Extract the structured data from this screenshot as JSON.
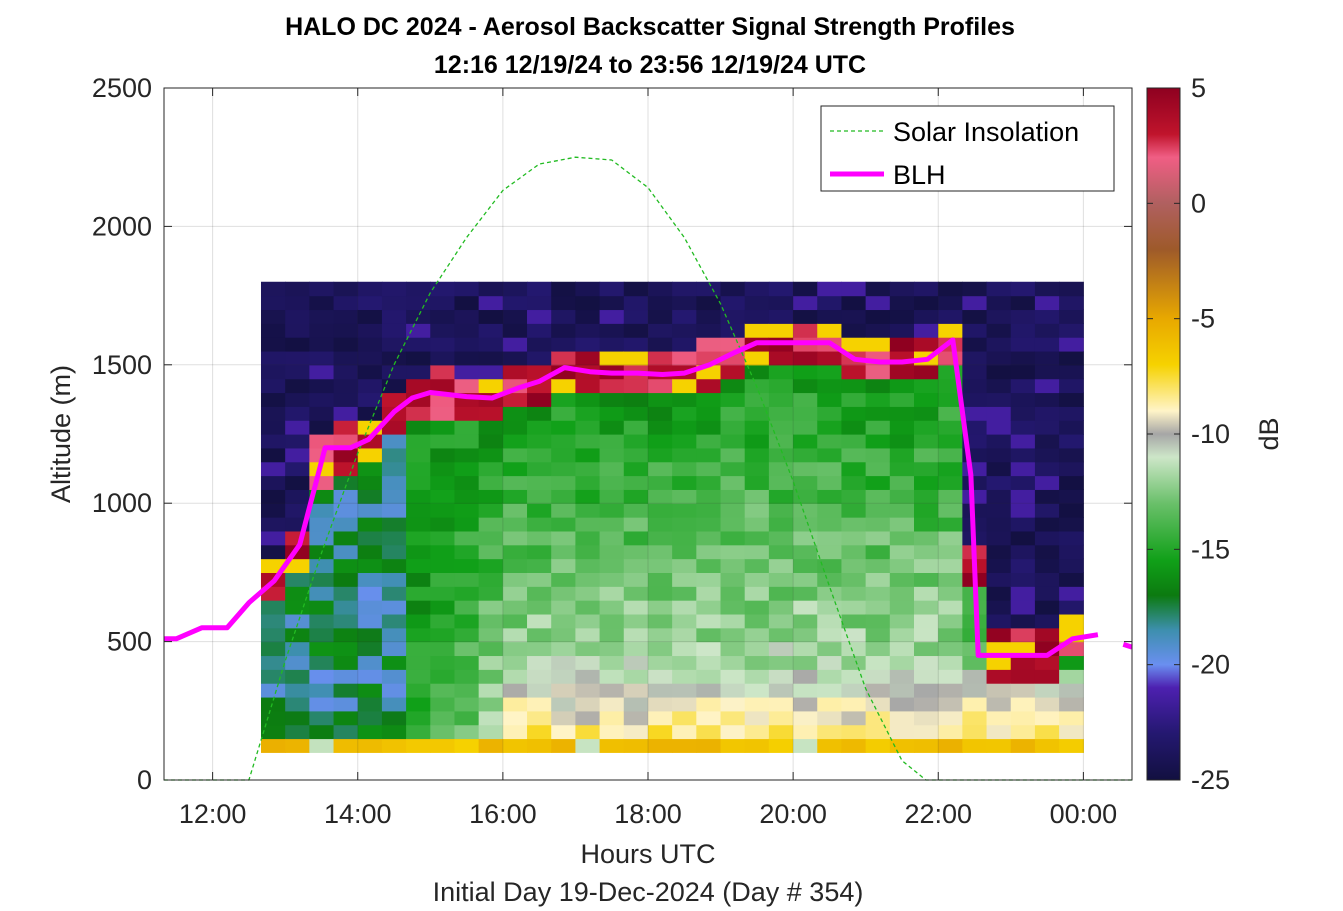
{
  "chart_data": {
    "type": "heatmap",
    "title": "HALO DC 2024 - Aerosol Backscatter Signal Strength Profiles",
    "subtitle": "12:16 12/19/24 to 23:56 12/19/24  UTC",
    "xlabel": "Hours UTC",
    "footer": "Initial Day 19-Dec-2024 (Day # 354)",
    "ylabel": "Altitude (m)",
    "colorbar_label": "dB",
    "xlim": [
      11.33,
      24.67
    ],
    "ylim": [
      0,
      2500
    ],
    "x_ticks": [
      12,
      14,
      16,
      18,
      20,
      22,
      24
    ],
    "x_tick_labels": [
      "12:00",
      "14:00",
      "16:00",
      "18:00",
      "20:00",
      "22:00",
      "00:00"
    ],
    "y_ticks": [
      0,
      500,
      1000,
      1500,
      2000,
      2500
    ],
    "y_tick_labels": [
      "0",
      "500",
      "1000",
      "1500",
      "2000",
      "2500"
    ],
    "clim": [
      -25,
      5
    ],
    "c_ticks": [
      5,
      0,
      -5,
      -10,
      -15,
      -20,
      -25
    ],
    "c_tick_labels": [
      "5",
      "0",
      "-5",
      "-10",
      "-15",
      "-20",
      "-25"
    ],
    "grid": true,
    "legend_position": "top-right",
    "colormap": [
      [
        -25,
        "#121040"
      ],
      [
        -23,
        "#241870"
      ],
      [
        -21,
        "#4d20b0"
      ],
      [
        -20,
        "#6a8ff0"
      ],
      [
        -18.5,
        "#3d8fae"
      ],
      [
        -17,
        "#0c7a10"
      ],
      [
        -15.5,
        "#10a018"
      ],
      [
        -13,
        "#6ac06a"
      ],
      [
        -11,
        "#cde6c8"
      ],
      [
        -10,
        "#a6a6a6"
      ],
      [
        -9,
        "#fff4c8"
      ],
      [
        -7,
        "#f6d200"
      ],
      [
        -5,
        "#e8a800"
      ],
      [
        -2,
        "#9e5a2a"
      ],
      [
        0,
        "#b06060"
      ],
      [
        2,
        "#f05e84"
      ],
      [
        3,
        "#c0142c"
      ],
      [
        5,
        "#8e0020"
      ]
    ],
    "heatmap": {
      "x_start": 12.0,
      "x_step": 0.3333,
      "y_start": 100,
      "y_step": 50,
      "rows": 34,
      "cols": 36,
      "missing_cols": [
        0,
        1
      ]
    },
    "series": [
      {
        "name": "Solar Insolation",
        "style": "dashed",
        "color": "#22bb22",
        "x": [
          11.33,
          12.0,
          12.5,
          13.0,
          13.5,
          14.0,
          14.5,
          15.0,
          15.5,
          16.0,
          16.5,
          17.0,
          17.5,
          18.0,
          18.5,
          19.0,
          19.5,
          20.0,
          20.5,
          21.0,
          21.5,
          21.83,
          22.2,
          24.67
        ],
        "y": [
          0,
          0,
          0,
          430,
          820,
          1180,
          1500,
          1760,
          1960,
          2130,
          2225,
          2250,
          2240,
          2140,
          1960,
          1720,
          1420,
          1080,
          700,
          330,
          70,
          0,
          0,
          0
        ]
      },
      {
        "name": "BLH",
        "style": "solid",
        "color": "#ff00ff",
        "x": [
          11.33,
          11.5,
          11.85,
          12.0,
          12.2,
          12.5,
          12.85,
          13.2,
          13.55,
          13.9,
          14.15,
          14.5,
          14.75,
          15.0,
          15.5,
          15.85,
          16.2,
          16.5,
          16.85,
          17.2,
          17.5,
          17.85,
          18.2,
          18.5,
          18.85,
          19.2,
          19.5,
          19.85,
          20.2,
          20.5,
          20.85,
          21.2,
          21.5,
          21.85,
          22.2,
          22.45,
          22.55,
          22.85,
          23.2,
          23.5,
          23.85,
          24.2
        ],
        "y": [
          510,
          510,
          550,
          550,
          550,
          640,
          720,
          850,
          1200,
          1200,
          1230,
          1330,
          1380,
          1400,
          1385,
          1380,
          1415,
          1440,
          1490,
          1475,
          1470,
          1470,
          1465,
          1470,
          1500,
          1545,
          1580,
          1580,
          1580,
          1580,
          1520,
          1510,
          1510,
          1520,
          1590,
          1100,
          450,
          450,
          450,
          450,
          510,
          525
        ],
        "extra_points": {
          "x": [
            24.55,
            24.67
          ],
          "y": [
            490,
            480
          ]
        }
      }
    ]
  }
}
